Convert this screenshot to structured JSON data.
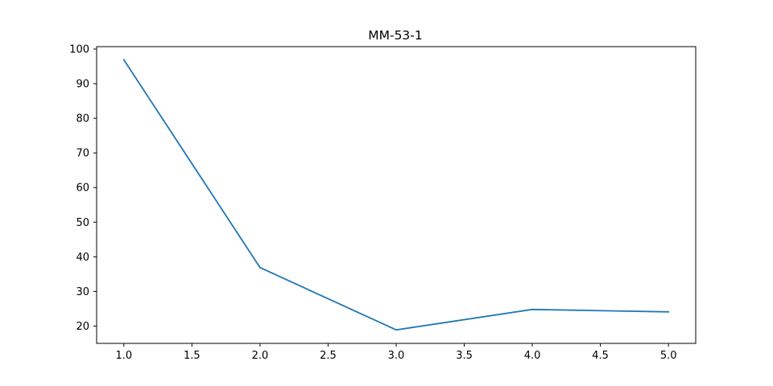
{
  "chart_data": {
    "type": "line",
    "title": "MM-53-1",
    "xlabel": "",
    "ylabel": "",
    "x": [
      1.0,
      2.0,
      3.0,
      4.0,
      5.0
    ],
    "series": [
      {
        "values": [
          96.9,
          36.9,
          18.9,
          24.8,
          24.1
        ],
        "color": "#1f77b4"
      }
    ],
    "xlim": [
      0.8,
      5.2
    ],
    "ylim": [
      15.0,
      100.7
    ],
    "xticks": [
      "1.0",
      "1.5",
      "2.0",
      "2.5",
      "3.0",
      "3.5",
      "4.0",
      "4.5",
      "5.0"
    ],
    "yticks": [
      "20",
      "30",
      "40",
      "50",
      "60",
      "70",
      "80",
      "90",
      "100"
    ],
    "grid": false,
    "legend": "none"
  }
}
